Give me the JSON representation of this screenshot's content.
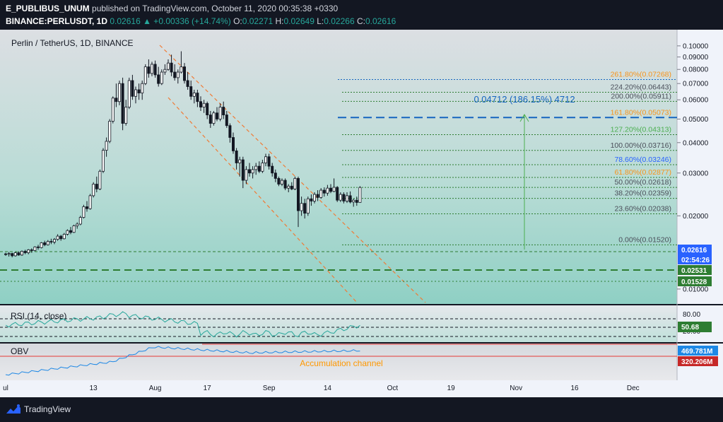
{
  "header": {
    "publisher": "E_PUBLIBUS_UNUM",
    "published_text": "published on TradingView.com, October 11, 2020 00:35:38 +0330",
    "symbol": "BINANCE:PERLUSDT, 1D",
    "last": "0.02616",
    "change": "▲ +0.00336 (+14.74%)",
    "o_label": "O:",
    "o": "0.02271",
    "h_label": "H:",
    "h": "0.02649",
    "l_label": "L:",
    "l": "0.02266",
    "c_label": "C:",
    "c": "0.02616"
  },
  "footer": {
    "brand": "TradingView"
  },
  "chart_data": {
    "type": "candlestick",
    "title": "Perlin / TetherUS, 1D, BINANCE",
    "price_axis": {
      "scale": "log",
      "range": [
        0.0088,
        0.115
      ],
      "ticks": [
        "0.10000",
        "0.09000",
        "0.08000",
        "0.07000",
        "0.06000",
        "0.05000",
        "0.04000",
        "0.03000",
        "0.02000",
        "0.01000"
      ]
    },
    "time_axis": {
      "labels": [
        "ul",
        "13",
        "Aug",
        "17",
        "Sep",
        "14",
        "Oct",
        "19",
        "Nov",
        "16",
        "Dec"
      ],
      "label_days": [
        0,
        27,
        46,
        62,
        81,
        99,
        119,
        137,
        157,
        175,
        193
      ]
    },
    "candles_ohlc": [
      [
        0.01395,
        0.0141,
        0.0137,
        0.0139
      ],
      [
        0.0139,
        0.0142,
        0.0136,
        0.014
      ],
      [
        0.014,
        0.0141,
        0.0135,
        0.0137
      ],
      [
        0.0137,
        0.0142,
        0.0136,
        0.0141
      ],
      [
        0.0141,
        0.0143,
        0.0137,
        0.0138
      ],
      [
        0.0138,
        0.0144,
        0.0137,
        0.0143
      ],
      [
        0.0143,
        0.0145,
        0.0139,
        0.0141
      ],
      [
        0.0141,
        0.0146,
        0.0139,
        0.0145
      ],
      [
        0.0145,
        0.0147,
        0.0141,
        0.0144
      ],
      [
        0.0144,
        0.015,
        0.0143,
        0.0149
      ],
      [
        0.0149,
        0.0152,
        0.0145,
        0.0148
      ],
      [
        0.0148,
        0.0156,
        0.0147,
        0.0155
      ],
      [
        0.0155,
        0.0158,
        0.015,
        0.0152
      ],
      [
        0.0152,
        0.0159,
        0.0151,
        0.0157
      ],
      [
        0.0157,
        0.0161,
        0.0153,
        0.0156
      ],
      [
        0.0156,
        0.0162,
        0.0153,
        0.016
      ],
      [
        0.016,
        0.0168,
        0.0158,
        0.0165
      ],
      [
        0.0165,
        0.0167,
        0.0158,
        0.0161
      ],
      [
        0.0161,
        0.017,
        0.016,
        0.0168
      ],
      [
        0.0168,
        0.0176,
        0.0166,
        0.0174
      ],
      [
        0.0174,
        0.018,
        0.0168,
        0.0171
      ],
      [
        0.0171,
        0.0184,
        0.017,
        0.0182
      ],
      [
        0.0182,
        0.0188,
        0.0177,
        0.0185
      ],
      [
        0.0185,
        0.02,
        0.0183,
        0.0197
      ],
      [
        0.0197,
        0.0222,
        0.0195,
        0.0218
      ],
      [
        0.0218,
        0.023,
        0.0208,
        0.0214
      ],
      [
        0.0214,
        0.0246,
        0.0212,
        0.0242
      ],
      [
        0.0242,
        0.0275,
        0.0238,
        0.027
      ],
      [
        0.027,
        0.029,
        0.025,
        0.0258
      ],
      [
        0.0258,
        0.031,
        0.0255,
        0.0305
      ],
      [
        0.0305,
        0.038,
        0.03,
        0.0372
      ],
      [
        0.0372,
        0.042,
        0.035,
        0.0405
      ],
      [
        0.0405,
        0.05,
        0.0398,
        0.049
      ],
      [
        0.049,
        0.062,
        0.048,
        0.061
      ],
      [
        0.061,
        0.07,
        0.056,
        0.059
      ],
      [
        0.059,
        0.072,
        0.057,
        0.07
      ],
      [
        0.07,
        0.074,
        0.045,
        0.048
      ],
      [
        0.048,
        0.06,
        0.047,
        0.056
      ],
      [
        0.056,
        0.074,
        0.055,
        0.072
      ],
      [
        0.072,
        0.076,
        0.06,
        0.062
      ],
      [
        0.062,
        0.068,
        0.058,
        0.066
      ],
      [
        0.066,
        0.07,
        0.06,
        0.064
      ],
      [
        0.064,
        0.072,
        0.06,
        0.07
      ],
      [
        0.07,
        0.084,
        0.069,
        0.082
      ],
      [
        0.082,
        0.088,
        0.074,
        0.077
      ],
      [
        0.077,
        0.086,
        0.075,
        0.084
      ],
      [
        0.084,
        0.087,
        0.074,
        0.076
      ],
      [
        0.076,
        0.082,
        0.068,
        0.07
      ],
      [
        0.07,
        0.08,
        0.069,
        0.078
      ],
      [
        0.078,
        0.084,
        0.076,
        0.08
      ],
      [
        0.08,
        0.088,
        0.079,
        0.085
      ],
      [
        0.085,
        0.092,
        0.075,
        0.078
      ],
      [
        0.078,
        0.084,
        0.072,
        0.074
      ],
      [
        0.074,
        0.08,
        0.07,
        0.078
      ],
      [
        0.078,
        0.095,
        0.077,
        0.082
      ],
      [
        0.082,
        0.085,
        0.07,
        0.072
      ],
      [
        0.072,
        0.078,
        0.066,
        0.068
      ],
      [
        0.068,
        0.072,
        0.06,
        0.062
      ],
      [
        0.062,
        0.066,
        0.058,
        0.064
      ],
      [
        0.064,
        0.066,
        0.056,
        0.059
      ],
      [
        0.059,
        0.062,
        0.054,
        0.056
      ],
      [
        0.056,
        0.06,
        0.053,
        0.058
      ],
      [
        0.058,
        0.059,
        0.05,
        0.052
      ],
      [
        0.052,
        0.054,
        0.046,
        0.048
      ],
      [
        0.048,
        0.054,
        0.047,
        0.053
      ],
      [
        0.053,
        0.056,
        0.049,
        0.05
      ],
      [
        0.05,
        0.058,
        0.049,
        0.056
      ],
      [
        0.056,
        0.059,
        0.05,
        0.052
      ],
      [
        0.052,
        0.054,
        0.046,
        0.047
      ],
      [
        0.047,
        0.048,
        0.04,
        0.042
      ],
      [
        0.042,
        0.044,
        0.036,
        0.037
      ],
      [
        0.037,
        0.038,
        0.031,
        0.033
      ],
      [
        0.033,
        0.035,
        0.029,
        0.034
      ],
      [
        0.034,
        0.035,
        0.026,
        0.028
      ],
      [
        0.028,
        0.032,
        0.027,
        0.031
      ],
      [
        0.031,
        0.033,
        0.029,
        0.03
      ],
      [
        0.03,
        0.032,
        0.0285,
        0.031
      ],
      [
        0.031,
        0.033,
        0.0295,
        0.032
      ],
      [
        0.032,
        0.0335,
        0.03,
        0.0305
      ],
      [
        0.0305,
        0.034,
        0.03,
        0.033
      ],
      [
        0.033,
        0.036,
        0.032,
        0.035
      ],
      [
        0.035,
        0.036,
        0.031,
        0.032
      ],
      [
        0.032,
        0.033,
        0.029,
        0.03
      ],
      [
        0.03,
        0.031,
        0.0275,
        0.0285
      ],
      [
        0.0285,
        0.029,
        0.0265,
        0.027
      ],
      [
        0.027,
        0.0285,
        0.0265,
        0.028
      ],
      [
        0.028,
        0.0285,
        0.0255,
        0.026
      ],
      [
        0.026,
        0.027,
        0.025,
        0.0265
      ],
      [
        0.0265,
        0.0275,
        0.0255,
        0.0258
      ],
      [
        0.0258,
        0.029,
        0.0255,
        0.0285
      ],
      [
        0.0285,
        0.029,
        0.018,
        0.021
      ],
      [
        0.021,
        0.024,
        0.02,
        0.0225
      ],
      [
        0.0225,
        0.0235,
        0.0195,
        0.0205
      ],
      [
        0.0205,
        0.024,
        0.02,
        0.0235
      ],
      [
        0.0235,
        0.0245,
        0.022,
        0.023
      ],
      [
        0.023,
        0.025,
        0.0225,
        0.0245
      ],
      [
        0.0245,
        0.0255,
        0.023,
        0.0238
      ],
      [
        0.0238,
        0.026,
        0.0235,
        0.0255
      ],
      [
        0.0255,
        0.0262,
        0.024,
        0.0248
      ],
      [
        0.0248,
        0.0268,
        0.0242,
        0.026
      ],
      [
        0.026,
        0.027,
        0.0248,
        0.0252
      ],
      [
        0.0252,
        0.0285,
        0.025,
        0.0262
      ],
      [
        0.0262,
        0.0265,
        0.0228,
        0.0232
      ],
      [
        0.0232,
        0.025,
        0.0228,
        0.0245
      ],
      [
        0.0245,
        0.025,
        0.0225,
        0.023
      ],
      [
        0.023,
        0.025,
        0.0226,
        0.0242
      ],
      [
        0.0242,
        0.0252,
        0.0225,
        0.0228
      ],
      [
        0.0228,
        0.0235,
        0.0218,
        0.0232
      ],
      [
        0.0232,
        0.024,
        0.022,
        0.0227
      ],
      [
        0.02271,
        0.02649,
        0.02266,
        0.02616
      ]
    ],
    "fibonacci_levels": [
      {
        "label": "261.80%(0.07268)",
        "value": 0.07268,
        "color": "#f7931a"
      },
      {
        "label": "224.20%(0.06443)",
        "value": 0.06443,
        "color": "#d1d4dc"
      },
      {
        "label": "200.00%(0.05911)",
        "value": 0.05911,
        "color": "#d1d4dc"
      },
      {
        "label": "161.80%(0.05073)",
        "value": 0.05073,
        "color": "#f7931a"
      },
      {
        "label": "127.20%(0.04313)",
        "value": 0.04313,
        "color": "#4caf50"
      },
      {
        "label": "100.00%(0.03716)",
        "value": 0.03716,
        "color": "#d1d4dc"
      },
      {
        "label": "78.60%(0.03246)",
        "value": 0.03246,
        "color": "#2962ff"
      },
      {
        "label": "61.80%(0.02877)",
        "value": 0.02877,
        "color": "#f7931a"
      },
      {
        "label": "50.00%(0.02618)",
        "value": 0.02618,
        "color": "#d1d4dc"
      },
      {
        "label": "38.20%(0.02359)",
        "value": 0.02359,
        "color": "#d1d4dc"
      },
      {
        "label": "23.60%(0.02038)",
        "value": 0.02038,
        "color": "#d1d4dc"
      },
      {
        "label": "0.00%(0.01520)",
        "value": 0.0152,
        "color": "#d1d4dc"
      }
    ],
    "measure_annotation": "0.04712 (186.15%) 4712",
    "price_badges": [
      {
        "label": "0.02616",
        "color": "#2962ff"
      },
      {
        "label": "02:54:26",
        "color": "#2962ff"
      },
      {
        "label": "0.02531",
        "color": "#2e7d32"
      },
      {
        "label": "0.01528",
        "color": "#2e7d32"
      }
    ],
    "rsi": {
      "label": "RSI (14, close)",
      "value_label": "50.68",
      "tick_top": "80.00",
      "tick_bottom": "20.00"
    },
    "obv": {
      "label": "OBV",
      "value_label": "469.781M",
      "level_label": "320.206M",
      "annotation": "Accumulation channel"
    }
  }
}
